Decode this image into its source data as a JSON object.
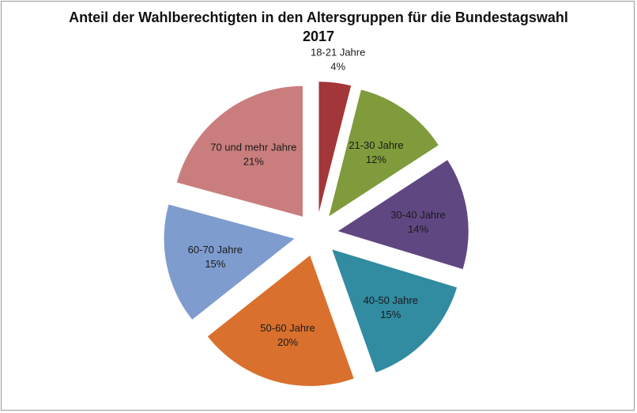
{
  "chart_data": {
    "type": "pie",
    "title_line1": "Anteil der Wahlberechtigten in den Altersgruppen für die Bundestagswahl",
    "title_line2": "2017",
    "exploded": true,
    "legend": "none",
    "slices": [
      {
        "label": "18-21 Jahre",
        "value": 4,
        "value_label": "4%",
        "color": "#a23638"
      },
      {
        "label": "21-30 Jahre",
        "value": 12,
        "value_label": "12%",
        "color": "#7f9b3b"
      },
      {
        "label": "30-40 Jahre",
        "value": 14,
        "value_label": "14%",
        "color": "#5f4781"
      },
      {
        "label": "40-50 Jahre",
        "value": 15,
        "value_label": "15%",
        "color": "#318ba1"
      },
      {
        "label": "50-60 Jahre",
        "value": 20,
        "value_label": "20%",
        "color": "#d9702d"
      },
      {
        "label": "60-70 Jahre",
        "value": 15,
        "value_label": "15%",
        "color": "#7f9cce"
      },
      {
        "label": "70 und mehr Jahre",
        "value": 21,
        "value_label": "21%",
        "color": "#c97e7d"
      }
    ]
  }
}
